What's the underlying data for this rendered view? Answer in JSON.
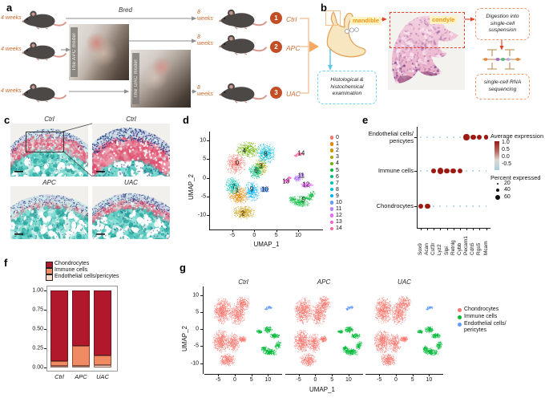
{
  "figure": {
    "panel_a": {
      "label": "a",
      "bred_label": "Bred",
      "start_age": "4 weeks",
      "end_age": "8\nweeks",
      "photos": [
        {
          "label": "The APC model"
        },
        {
          "label": "The UAC model"
        }
      ],
      "groups": [
        {
          "number": "1",
          "name": "Ctrl"
        },
        {
          "number": "2",
          "name": "APC"
        },
        {
          "number": "3",
          "name": "UAC"
        }
      ],
      "accent_color": "#cf6a2c",
      "circle_color": "#c14e24",
      "bracket_color": "#f1c7a0"
    },
    "panel_b": {
      "label": "b",
      "mandible_label": "mandible",
      "condyle_label": "condyle",
      "digestion_text": "Digestion into\nsingle-cell\nsuspension",
      "histology_text": "Histological &\nhistochemical\nexamination",
      "sequencing_text": "single-cell RNA\nsequencing",
      "red_arrow_color": "#e2442b",
      "blue_arrow_color": "#5ec8e8"
    },
    "panel_c": {
      "label": "c",
      "tiles": [
        {
          "title": "Ctrl"
        },
        {
          "title": "Ctrl"
        },
        {
          "title": "APC"
        },
        {
          "title": "UAC"
        }
      ]
    },
    "panel_d": {
      "label": "d"
    },
    "panel_e": {
      "label": "e"
    },
    "panel_f": {
      "label": "f"
    },
    "panel_g": {
      "label": "g"
    }
  },
  "chart_data": [
    {
      "id": "umap_all_clusters",
      "type": "scatter",
      "xlabel": "UMAP_1",
      "ylabel": "UMAP_2",
      "xticks": [
        -5,
        0,
        5,
        10
      ],
      "yticks": [
        -10,
        -5,
        0,
        5,
        10
      ],
      "xlim": [
        -10,
        16
      ],
      "ylim": [
        -14,
        12.4
      ],
      "legend_position": "right",
      "clusters": [
        {
          "id": "0",
          "color": "#F8766D",
          "label_pos": [
            -3.9,
            3.9
          ],
          "blobs": [
            [
              -4.3,
              3.8,
              2.4,
              3.0,
              420
            ]
          ]
        },
        {
          "id": "1",
          "color": "#E58700",
          "label_pos": [
            -3.9,
            -3.4
          ],
          "blobs": [
            [
              -3.6,
              -4.6,
              2.3,
              2.6,
              380
            ]
          ]
        },
        {
          "id": "2",
          "color": "#C99800",
          "label_pos": [
            -2.6,
            -9.6
          ],
          "blobs": [
            [
              -2.4,
              -9.2,
              2.6,
              1.9,
              340
            ]
          ]
        },
        {
          "id": "3",
          "color": "#A3A500",
          "label_pos": [
            1.5,
            3.1
          ],
          "blobs": [
            [
              1.4,
              3.0,
              1.7,
              2.4,
              260
            ]
          ]
        },
        {
          "id": "4",
          "color": "#6BB100",
          "label_pos": [
            -2.3,
            7.2
          ],
          "blobs": [
            [
              -1.6,
              7.6,
              2.8,
              2.3,
              380
            ]
          ]
        },
        {
          "id": "5",
          "color": "#00BA38",
          "label_pos": [
            11.2,
            -5.9
          ],
          "blobs": [
            [
              10.4,
              -6.6,
              2.4,
              1.1,
              230,
              -10
            ],
            [
              12.9,
              -4.7,
              0.9,
              1.4,
              100,
              -30
            ],
            [
              8.7,
              -5.6,
              0.9,
              0.8,
              70,
              20
            ],
            [
              11.5,
              -5.4,
              1.8,
              0.5,
              80,
              -15
            ]
          ]
        },
        {
          "id": "6",
          "color": "#00BF7D",
          "label_pos": [
            0.4,
            1.9
          ],
          "blobs": [
            [
              0.3,
              1.8,
              1.8,
              2.2,
              260
            ]
          ]
        },
        {
          "id": "7",
          "color": "#00C0AF",
          "label_pos": [
            -4.7,
            -2.4
          ],
          "blobs": [
            [
              -5.0,
              -2.0,
              1.8,
              2.4,
              300
            ]
          ]
        },
        {
          "id": "8",
          "color": "#00BCD8",
          "label_pos": [
            2.6,
            6.4
          ],
          "blobs": [
            [
              2.6,
              6.6,
              2.3,
              2.8,
              380
            ]
          ]
        },
        {
          "id": "9",
          "color": "#00B0F6",
          "label_pos": [
            -0.6,
            -3.2
          ],
          "blobs": [
            [
              -0.6,
              -3.6,
              1.8,
              2.8,
              300
            ]
          ]
        },
        {
          "id": "10",
          "color": "#619CFF",
          "label_pos": [
            2.4,
            -3.1
          ],
          "blobs": [
            [
              2.3,
              -3.0,
              1.2,
              1.0,
              160
            ]
          ]
        },
        {
          "id": "11",
          "color": "#B983FF",
          "label_pos": [
            10.7,
            0.6
          ],
          "blobs": [
            [
              9.9,
              -0.1,
              1.2,
              0.9,
              140
            ],
            [
              10.8,
              0.9,
              0.8,
              0.7,
              60
            ]
          ]
        },
        {
          "id": "12",
          "color": "#E76BF3",
          "label_pos": [
            11.8,
            -1.9
          ],
          "blobs": [
            [
              11.9,
              -1.9,
              1.5,
              0.8,
              150
            ]
          ]
        },
        {
          "id": "13",
          "color": "#FD61D1",
          "label_pos": [
            7.2,
            -1.0
          ],
          "blobs": [
            [
              7.3,
              -0.8,
              0.8,
              0.5,
              80
            ],
            [
              8.0,
              0.1,
              0.5,
              0.4,
              40
            ]
          ]
        },
        {
          "id": "14",
          "color": "#FF67A4",
          "label_pos": [
            10.7,
            6.6
          ],
          "blobs": [
            [
              10.3,
              6.5,
              1.0,
              0.5,
              70
            ],
            [
              9.4,
              6.0,
              0.5,
              0.35,
              30
            ]
          ]
        }
      ]
    },
    {
      "id": "marker_dotplot",
      "type": "heatmap-dot",
      "genes": [
        "Sox9",
        "Acan",
        "Csf3r",
        "Lyz2",
        "Slpi",
        "Retnlg",
        "Cybb",
        "Pecam1",
        "Cdh5",
        "Rgs5",
        "Mcam"
      ],
      "rows": [
        {
          "name": "Endothelial cells/\npericytes",
          "pct": [
            5,
            5,
            5,
            5,
            5,
            5,
            8,
            70,
            60,
            52,
            48
          ],
          "expr": [
            -0.3,
            -0.3,
            -0.3,
            -0.2,
            -0.3,
            -0.3,
            -0.2,
            1.0,
            1.0,
            1.0,
            1.0
          ]
        },
        {
          "name": "Immune cells",
          "pct": [
            4,
            4,
            45,
            70,
            58,
            58,
            58,
            6,
            4,
            4,
            4
          ],
          "expr": [
            -0.3,
            -0.3,
            1.0,
            1.0,
            1.0,
            1.0,
            1.0,
            -0.2,
            -0.3,
            -0.3,
            -0.3
          ]
        },
        {
          "name": "Chondrocytes",
          "pct": [
            55,
            65,
            4,
            6,
            4,
            4,
            4,
            4,
            4,
            4,
            4
          ],
          "expr": [
            1.0,
            1.0,
            -0.3,
            -0.3,
            -0.3,
            -0.3,
            -0.3,
            -0.3,
            -0.3,
            -0.3,
            -0.3
          ]
        }
      ],
      "color_legend": {
        "title": "Average expression",
        "ticks": [
          "1.0",
          "0.5",
          "0.0",
          "-0.5"
        ],
        "high": "#9c1a12",
        "low": "#a9cfe4"
      },
      "size_legend": {
        "title": "Percent expressed",
        "ticks": [
          "20",
          "40",
          "60"
        ]
      }
    },
    {
      "id": "celltype_composition",
      "type": "bar",
      "stacked": true,
      "categories": [
        "Ctrl",
        "APC",
        "UAC"
      ],
      "yticks": [
        "1.00",
        "0.75",
        "0.50",
        "0.25",
        "0.00"
      ],
      "ylim": [
        0,
        1
      ],
      "legend": [
        "Chondrocytes",
        "Immune cells",
        "Endothelial cells/pericytes"
      ],
      "series": [
        {
          "name": "Endothelial cells/pericytes",
          "color": "#FBDBC7",
          "values": [
            0.02,
            0.02,
            0.03
          ]
        },
        {
          "name": "Immune cells",
          "color": "#EF8A62",
          "values": [
            0.06,
            0.26,
            0.13
          ]
        },
        {
          "name": "Chondrocytes",
          "color": "#B2182B",
          "values": [
            0.92,
            0.72,
            0.84
          ]
        }
      ]
    },
    {
      "id": "umap_by_group",
      "type": "scatter",
      "facets": [
        "Ctrl",
        "APC",
        "UAC"
      ],
      "xlabel": "UMAP_1",
      "ylabel": "UMAP_2",
      "xticks": [
        -5,
        0,
        5,
        10
      ],
      "yticks": [
        10,
        5,
        0,
        -5,
        -10
      ],
      "xlim": [
        -9,
        14.2
      ],
      "ylim": [
        -13.2,
        12.5
      ],
      "cell_types": [
        {
          "name": "Chondrocytes",
          "color": "#F8766D",
          "blobs": [
            [
              -3.8,
              5.5,
              2.8,
              4.0,
              620
            ],
            [
              -4.2,
              -3.5,
              2.6,
              3.5,
              520
            ],
            [
              -2.4,
              -9.0,
              2.6,
              2.0,
              300
            ],
            [
              0.8,
              4.5,
              2.4,
              3.5,
              400
            ],
            [
              2.4,
              7.5,
              2.2,
              2.4,
              260
            ],
            [
              -0.5,
              -4.0,
              2.0,
              3.0,
              300
            ],
            [
              2.3,
              -2.9,
              1.2,
              1.0,
              130
            ]
          ]
        },
        {
          "name": "Immune cells",
          "color": "#00BA38",
          "blobs": [
            [
              10.4,
              -6.6,
              2.4,
              1.1,
              260,
              -10
            ],
            [
              12.9,
              -4.7,
              0.9,
              1.4,
              110,
              -30
            ],
            [
              8.7,
              -5.6,
              0.9,
              0.8,
              70,
              20
            ],
            [
              9.9,
              -0.1,
              1.4,
              1.0,
              150
            ],
            [
              11.9,
              -1.9,
              1.5,
              0.8,
              140
            ],
            [
              7.3,
              -0.7,
              0.9,
              0.6,
              80
            ]
          ]
        },
        {
          "name": "Endothelial cells/\npericytes",
          "color": "#619CFF",
          "blobs": [
            [
              10.3,
              6.4,
              1.0,
              0.5,
              55
            ],
            [
              9.4,
              5.9,
              0.5,
              0.35,
              25
            ]
          ]
        }
      ]
    }
  ]
}
